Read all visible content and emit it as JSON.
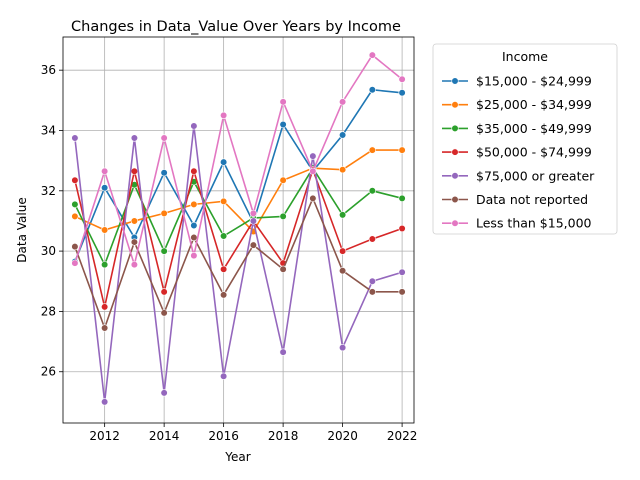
{
  "chart_data": {
    "type": "line",
    "title": "Changes in Data_Value Over Years by Income",
    "xlabel": "Year",
    "ylabel": "Data Value",
    "xlim": [
      2010.6,
      2022.4
    ],
    "ylim": [
      24.3,
      37.1
    ],
    "xticks": [
      2012,
      2014,
      2016,
      2018,
      2020,
      2022
    ],
    "yticks": [
      26,
      28,
      30,
      32,
      34,
      36
    ],
    "grid": true,
    "legend": {
      "title": "Income",
      "placement": "outside-right"
    },
    "x": [
      2011,
      2012,
      2013,
      2014,
      2015,
      2016,
      2017,
      2018,
      2019,
      2020,
      2021,
      2022
    ],
    "series": [
      {
        "name": "$15,000 - $24,999",
        "color": "#1f77b4",
        "values": [
          29.65,
          32.1,
          30.45,
          32.6,
          30.85,
          32.95,
          30.95,
          34.2,
          32.65,
          33.85,
          35.35,
          35.25
        ]
      },
      {
        "name": "$25,000 - $34,999",
        "color": "#ff7f0e",
        "values": [
          31.15,
          30.7,
          31.0,
          31.25,
          31.55,
          31.65,
          30.65,
          32.35,
          32.75,
          32.7,
          33.35,
          33.35
        ]
      },
      {
        "name": "$35,000 - $49,999",
        "color": "#2ca02c",
        "values": [
          31.55,
          29.55,
          32.2,
          30.0,
          32.3,
          30.5,
          31.1,
          31.15,
          32.75,
          31.2,
          32.0,
          31.75
        ]
      },
      {
        "name": "$50,000 - $74,999",
        "color": "#d62728",
        "values": [
          32.35,
          28.15,
          32.65,
          28.65,
          32.65,
          29.4,
          31.0,
          29.6,
          32.7,
          30.0,
          30.4,
          30.75
        ]
      },
      {
        "name": "$75,000 or greater",
        "color": "#9467bd",
        "values": [
          33.75,
          25.0,
          33.75,
          25.3,
          34.15,
          25.85,
          31.0,
          26.65,
          33.15,
          26.8,
          29.0,
          29.3
        ]
      },
      {
        "name": "Data not reported",
        "color": "#8c564b",
        "values": [
          30.15,
          27.45,
          30.3,
          27.95,
          30.45,
          28.55,
          30.2,
          29.4,
          31.75,
          29.35,
          28.65,
          28.65
        ]
      },
      {
        "name": "Less than $15,000",
        "color": "#e377c2",
        "values": [
          29.6,
          32.65,
          29.55,
          33.75,
          29.85,
          34.5,
          31.25,
          34.95,
          32.65,
          34.95,
          36.5,
          35.7
        ]
      }
    ]
  }
}
